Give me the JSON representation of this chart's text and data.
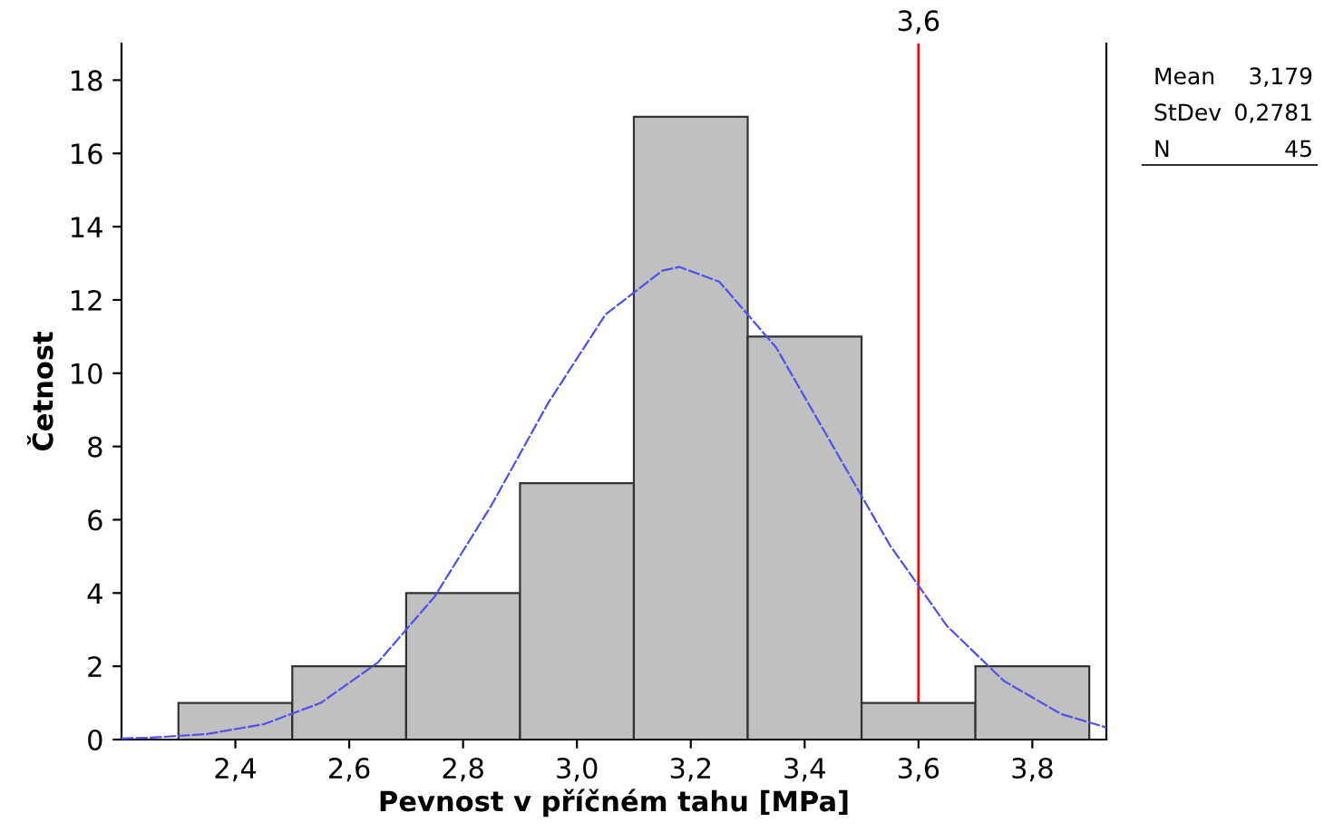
{
  "chart_data": {
    "type": "histogram",
    "xlabel": "Pevnost v příčném tahu [MPa]",
    "ylabel": "Četnost",
    "bins": [
      2.3,
      2.5,
      2.7,
      2.9,
      3.1,
      3.3,
      3.5,
      3.7,
      3.9
    ],
    "values": [
      1,
      2,
      4,
      7,
      17,
      11,
      1,
      2
    ],
    "color": "#c0c0c0",
    "series": [
      {
        "type": "line",
        "color": "#5050f0",
        "line_style": "dashed",
        "x": [
          2.2,
          2.25,
          2.35,
          2.45,
          2.55,
          2.65,
          2.75,
          2.85,
          2.95,
          3.05,
          3.15,
          3.18,
          3.25,
          3.35,
          3.45,
          3.55,
          3.65,
          3.75,
          3.85,
          3.93
        ],
        "values": [
          0.03,
          0.05,
          0.15,
          0.42,
          1.0,
          2.1,
          3.9,
          6.4,
          9.2,
          11.6,
          12.8,
          12.9,
          12.5,
          10.7,
          8.0,
          5.3,
          3.1,
          1.6,
          0.7,
          0.33
        ]
      }
    ],
    "ref_lines": [
      {
        "axis": "x",
        "value": 3.6,
        "label": "3,6",
        "color": "#ff0000"
      }
    ],
    "xlim": [
      2.2,
      3.93
    ],
    "ylim": [
      0,
      19
    ],
    "xticks": [
      {
        "value": 2.4,
        "label": "2,4"
      },
      {
        "value": 2.6,
        "label": "2,6"
      },
      {
        "value": 2.8,
        "label": "2,8"
      },
      {
        "value": 3.0,
        "label": "3,0"
      },
      {
        "value": 3.2,
        "label": "3,2"
      },
      {
        "value": 3.4,
        "label": "3,4"
      },
      {
        "value": 3.6,
        "label": "3,6"
      },
      {
        "value": 3.8,
        "label": "3,8"
      }
    ],
    "yticks": [
      0,
      2,
      4,
      6,
      8,
      10,
      12,
      14,
      16,
      18
    ],
    "grid": false,
    "annotations": [
      "Mean",
      "3,179",
      "StDev",
      "0,2781",
      "N",
      "45"
    ]
  }
}
